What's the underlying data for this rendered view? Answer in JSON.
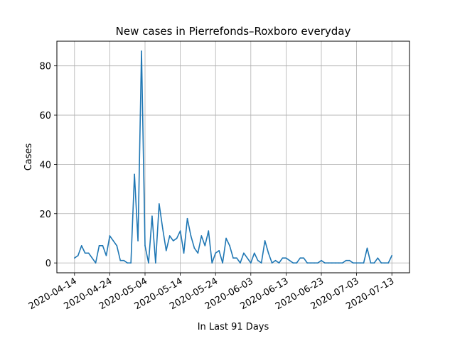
{
  "chart_data": {
    "type": "line",
    "title": "New cases in Pierrefonds–Roxboro everyday",
    "xlabel": "In Last 91 Days",
    "ylabel": "Cases",
    "x_start": "2020-04-14",
    "x_end": "2020-07-14",
    "xlim": [
      "2020-04-09",
      "2020-07-18"
    ],
    "ylim": [
      -4,
      90
    ],
    "xticks": [
      "2020-04-14",
      "2020-04-24",
      "2020-05-04",
      "2020-05-14",
      "2020-05-24",
      "2020-06-03",
      "2020-06-13",
      "2020-06-23",
      "2020-07-03",
      "2020-07-13"
    ],
    "yticks": [
      0,
      20,
      40,
      60,
      80
    ],
    "grid": true,
    "line_color": "#1f77b4",
    "series": [
      {
        "values": [
          2,
          3,
          7,
          4,
          4,
          2,
          0,
          7,
          7,
          3,
          11,
          9,
          7,
          1,
          1,
          0,
          0,
          36,
          9,
          86,
          7,
          0,
          19,
          0,
          24,
          14,
          5,
          11,
          9,
          10,
          13,
          4,
          18,
          11,
          6,
          4,
          11,
          7,
          13,
          0,
          4,
          5,
          0,
          10,
          7,
          2,
          2,
          0,
          4,
          2,
          0,
          4,
          1,
          0,
          9,
          4,
          0,
          1,
          0,
          2,
          2,
          1,
          0,
          0,
          2,
          2,
          0,
          0,
          0,
          0,
          1,
          0,
          0,
          0,
          0,
          0,
          0,
          1,
          1,
          0,
          0,
          0,
          0,
          6,
          0,
          0,
          2,
          0,
          0,
          0,
          3
        ]
      }
    ]
  }
}
